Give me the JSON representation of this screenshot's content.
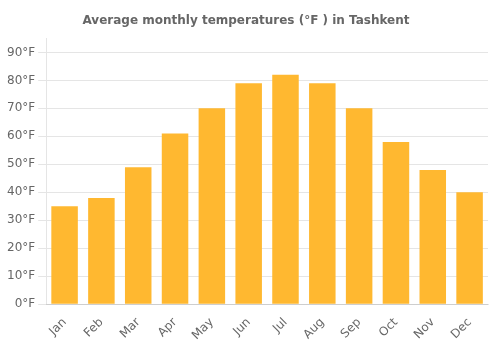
{
  "chart_data": {
    "type": "bar",
    "title": "Average monthly temperatures (°F ) in Tashkent",
    "categories": [
      "Jan",
      "Feb",
      "Mar",
      "Apr",
      "May",
      "Jun",
      "Jul",
      "Aug",
      "Sep",
      "Oct",
      "Nov",
      "Dec"
    ],
    "values": [
      35,
      38,
      49,
      61,
      70,
      79,
      82,
      79,
      70,
      58,
      48,
      40
    ],
    "color": "#FFB830",
    "ylim": [
      0,
      95
    ],
    "yticks": [
      {
        "value": 0,
        "label": "0°F"
      },
      {
        "value": 10,
        "label": "10°F"
      },
      {
        "value": 20,
        "label": "20°F"
      },
      {
        "value": 30,
        "label": "30°F"
      },
      {
        "value": 40,
        "label": "40°F"
      },
      {
        "value": 50,
        "label": "50°F"
      },
      {
        "value": 60,
        "label": "60°F"
      },
      {
        "value": 70,
        "label": "70°F"
      },
      {
        "value": 80,
        "label": "80°F"
      },
      {
        "value": 90,
        "label": "90°F"
      }
    ],
    "grid": true
  }
}
